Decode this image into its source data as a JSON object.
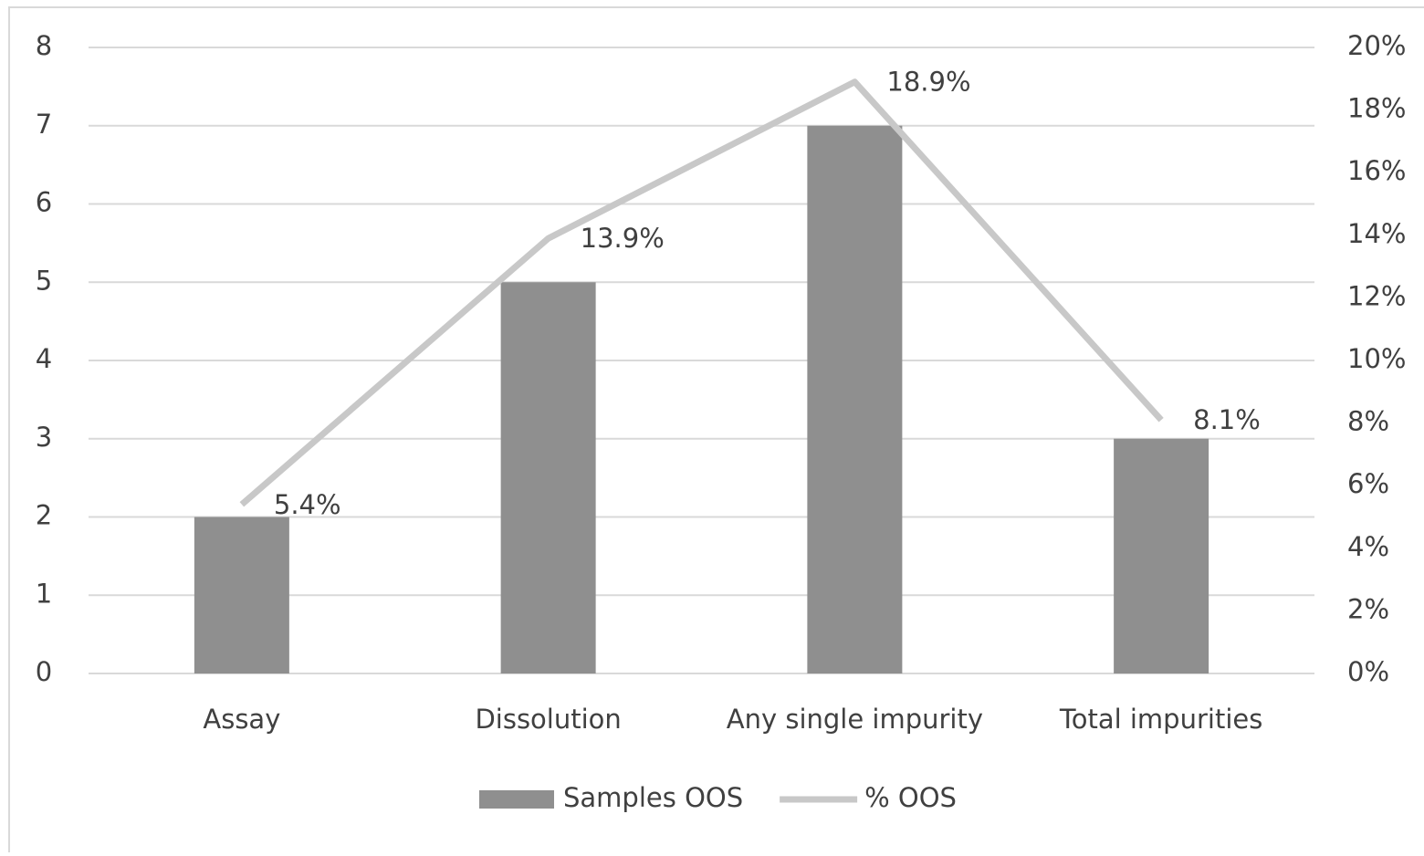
{
  "chart_data": {
    "type": "bar",
    "categories": [
      "Assay",
      "Dissolution",
      "Any single impurity",
      "Total impurities"
    ],
    "series": [
      {
        "name": "Samples OOS",
        "color": "#8f8f8f",
        "values": [
          2,
          5,
          7,
          3
        ]
      },
      {
        "name": "% OOS",
        "color": "#c8c8c8",
        "type": "line",
        "axis": "y2",
        "values": [
          5.4,
          13.9,
          18.9,
          8.1
        ],
        "value_labels": [
          "5.4%",
          "13.9%",
          "18.9%",
          "8.1%"
        ]
      }
    ],
    "ylim": [
      0,
      8
    ],
    "yticks": [
      0,
      1,
      2,
      3,
      4,
      5,
      6,
      7,
      8
    ],
    "y2lim": [
      0,
      20
    ],
    "y2ticks": [
      {
        "value": 0,
        "label": "0%"
      },
      {
        "value": 2,
        "label": "2%"
      },
      {
        "value": 4,
        "label": "4%"
      },
      {
        "value": 6,
        "label": "6%"
      },
      {
        "value": 8,
        "label": "8%"
      },
      {
        "value": 10,
        "label": "10%"
      },
      {
        "value": 12,
        "label": "12%"
      },
      {
        "value": 14,
        "label": "14%"
      },
      {
        "value": 16,
        "label": "16%"
      },
      {
        "value": 18,
        "label": "18%"
      },
      {
        "value": 20,
        "label": "20%"
      }
    ],
    "grid": true,
    "legend": "bottom"
  }
}
